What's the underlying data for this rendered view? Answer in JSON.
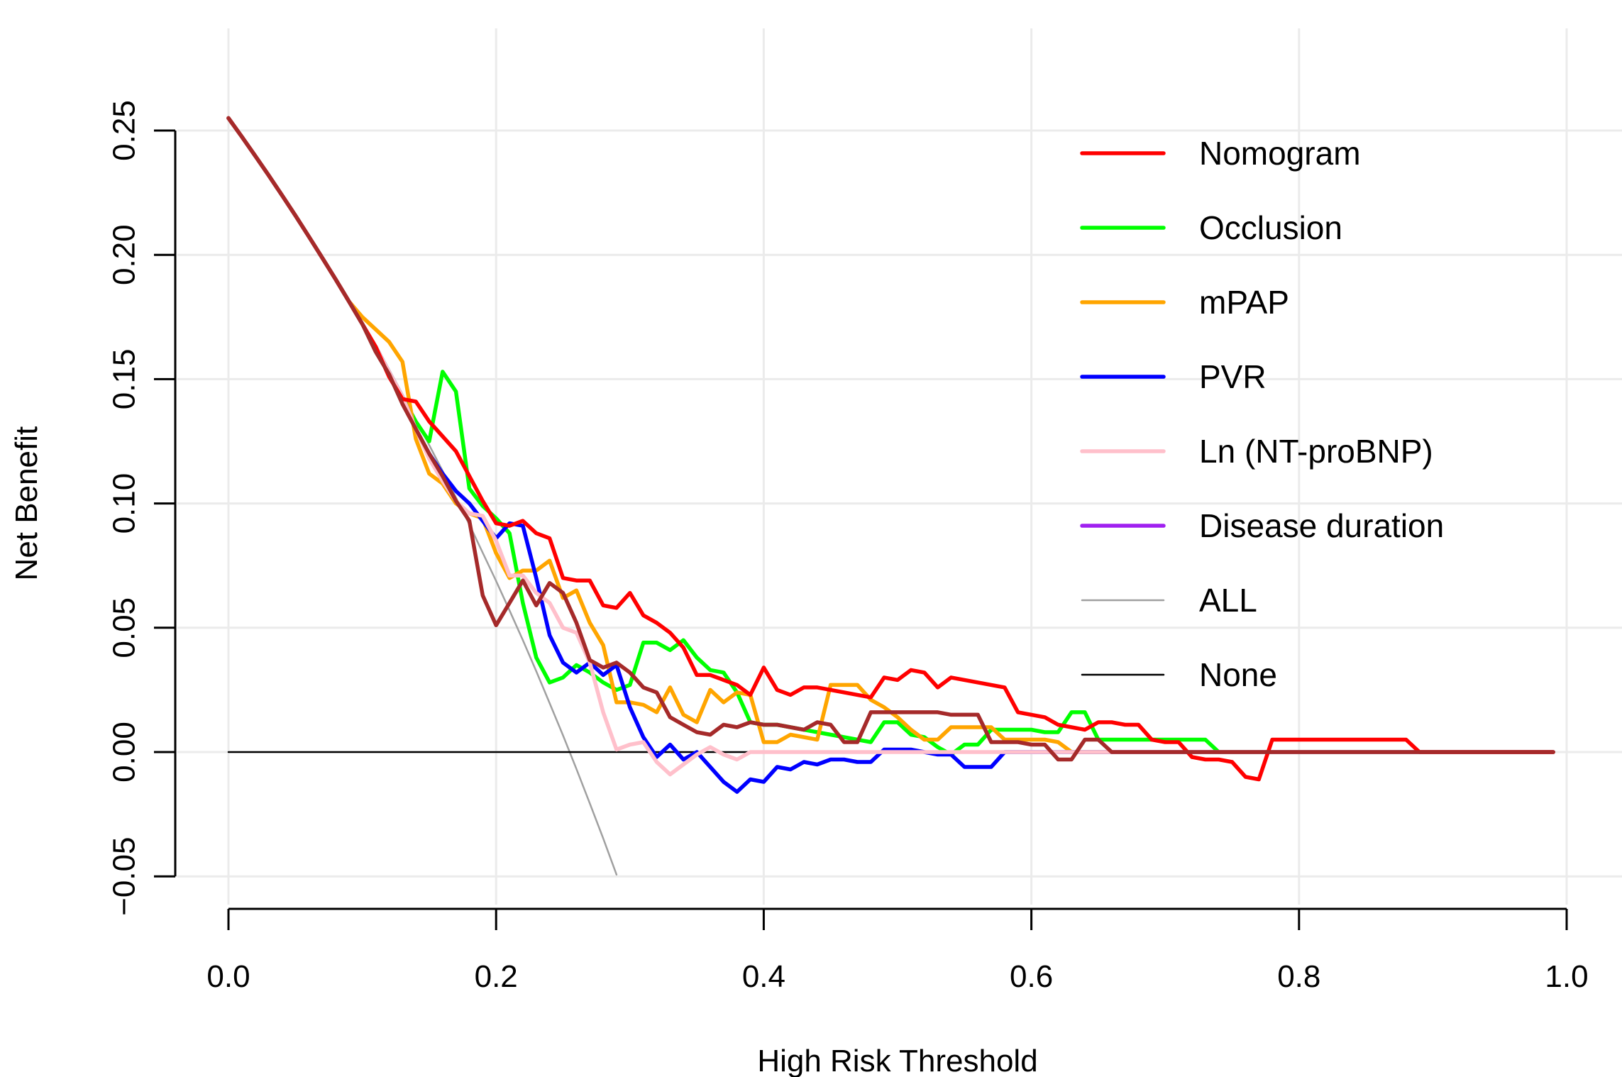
{
  "chart_data": {
    "type": "line",
    "title": "",
    "xlabel": "High Risk Threshold",
    "ylabel": "Net Benefit",
    "xlim": [
      0,
      1.0
    ],
    "ylim": [
      -0.05,
      0.25
    ],
    "xticks": [
      "0.0",
      "0.2",
      "0.4",
      "0.6",
      "0.8",
      "1.0"
    ],
    "xtick_values": [
      0,
      0.2,
      0.4,
      0.6,
      0.8,
      1.0
    ],
    "yticks": [
      "-0.05",
      "0.00",
      "0.05",
      "0.10",
      "0.15",
      "0.20",
      "0.25"
    ],
    "ytick_values": [
      -0.05,
      0,
      0.05,
      0.1,
      0.15,
      0.2,
      0.25
    ],
    "grid": true,
    "legend_position": "top-right",
    "x_step": 0.01,
    "x_start": 0,
    "series": [
      {
        "name": "Nomogram",
        "color": "#FF0000",
        "values": [
          0.255,
          0.2475,
          0.2398,
          0.232,
          0.224,
          0.2158,
          0.2074,
          0.1989,
          0.1902,
          0.1813,
          0.1722,
          0.163,
          0.151,
          0.142,
          0.141,
          0.133,
          0.127,
          0.121,
          0.111,
          0.101,
          0.092,
          0.091,
          0.093,
          0.088,
          0.086,
          0.07,
          0.069,
          0.069,
          0.059,
          0.058,
          0.064,
          0.055,
          0.052,
          0.048,
          0.042,
          0.031,
          0.031,
          0.029,
          0.027,
          0.023,
          0.034,
          0.025,
          0.023,
          0.026,
          0.026,
          0.025,
          0.024,
          0.023,
          0.022,
          0.03,
          0.029,
          0.033,
          0.032,
          0.026,
          0.03,
          0.029,
          0.028,
          0.027,
          0.026,
          0.016,
          0.015,
          0.014,
          0.011,
          0.01,
          0.009,
          0.012,
          0.012,
          0.011,
          0.011,
          0.005,
          0.004,
          0.004,
          -0.002,
          -0.003,
          -0.003,
          -0.004,
          -0.01,
          -0.011,
          0.005,
          0.005,
          0.005,
          0.005,
          0.005,
          0.005,
          0.005,
          0.005,
          0.005,
          0.005,
          0.005,
          0.0,
          0.0,
          0.0,
          0.0,
          0.0,
          0.0,
          0.0,
          0.0,
          0.0,
          0.0,
          0.0
        ]
      },
      {
        "name": "Occlusion",
        "color": "#00FF00",
        "values": [
          0.255,
          0.2475,
          0.2398,
          0.232,
          0.224,
          0.2158,
          0.2074,
          0.1989,
          0.1902,
          0.1813,
          0.1722,
          0.163,
          0.153,
          0.143,
          0.133,
          0.125,
          0.153,
          0.145,
          0.106,
          0.099,
          0.094,
          0.088,
          0.06,
          0.038,
          0.028,
          0.03,
          0.035,
          0.032,
          0.028,
          0.025,
          0.027,
          0.044,
          0.044,
          0.041,
          0.045,
          0.038,
          0.033,
          0.032,
          0.024,
          0.012,
          0.011,
          0.011,
          0.01,
          0.009,
          0.008,
          0.007,
          0.006,
          0.005,
          0.004,
          0.012,
          0.012,
          0.007,
          0.006,
          0.002,
          -0.001,
          0.003,
          0.003,
          0.009,
          0.009,
          0.009,
          0.009,
          0.008,
          0.008,
          0.016,
          0.016,
          0.005,
          0.005,
          0.005,
          0.005,
          0.005,
          0.005,
          0.005,
          0.005,
          0.005,
          0.0,
          0.0,
          0.0,
          0.0,
          0.0,
          0.0,
          0.0,
          0.0,
          0.0,
          0.0,
          0.0,
          0.0,
          0.0,
          0.0,
          0.0,
          0.0,
          0.0,
          0.0,
          0.0,
          0.0,
          0.0,
          0.0,
          0.0,
          0.0,
          0.0,
          0.0
        ]
      },
      {
        "name": "mPAP",
        "color": "#FFA500",
        "values": [
          0.255,
          0.2475,
          0.2398,
          0.232,
          0.224,
          0.2158,
          0.2074,
          0.1989,
          0.1902,
          0.1813,
          0.175,
          0.17,
          0.165,
          0.157,
          0.126,
          0.112,
          0.108,
          0.1,
          0.096,
          0.094,
          0.08,
          0.07,
          0.073,
          0.073,
          0.077,
          0.062,
          0.065,
          0.052,
          0.043,
          0.02,
          0.02,
          0.019,
          0.016,
          0.026,
          0.015,
          0.012,
          0.025,
          0.02,
          0.024,
          0.023,
          0.004,
          0.004,
          0.007,
          0.006,
          0.005,
          0.027,
          0.027,
          0.027,
          0.021,
          0.018,
          0.014,
          0.009,
          0.005,
          0.005,
          0.01,
          0.01,
          0.01,
          0.01,
          0.005,
          0.005,
          0.005,
          0.005,
          0.004,
          0.0,
          0.0,
          0.0,
          0.0,
          0.0,
          0.0,
          0.0,
          0.0,
          0.0,
          0.0,
          0.0,
          0.0,
          0.0,
          0.0,
          0.0,
          0.0,
          0.0,
          0.0,
          0.0,
          0.0,
          0.0,
          0.0,
          0.0,
          0.0,
          0.0,
          0.0,
          0.0,
          0.0,
          0.0,
          0.0,
          0.0,
          0.0,
          0.0,
          0.0,
          0.0,
          0.0,
          0.0
        ]
      },
      {
        "name": "PVR",
        "color": "#0000FF",
        "values": [
          0.255,
          0.2475,
          0.2398,
          0.232,
          0.224,
          0.2158,
          0.2074,
          0.1989,
          0.1902,
          0.1813,
          0.1722,
          0.163,
          0.153,
          0.143,
          0.13,
          0.12,
          0.112,
          0.105,
          0.1,
          0.093,
          0.086,
          0.092,
          0.091,
          0.07,
          0.047,
          0.036,
          0.032,
          0.036,
          0.031,
          0.035,
          0.018,
          0.006,
          -0.002,
          0.003,
          -0.003,
          0.0,
          -0.006,
          -0.012,
          -0.016,
          -0.011,
          -0.012,
          -0.006,
          -0.007,
          -0.004,
          -0.005,
          -0.003,
          -0.003,
          -0.004,
          -0.004,
          0.001,
          0.001,
          0.001,
          0.0,
          -0.001,
          -0.001,
          -0.006,
          -0.006,
          -0.006,
          0.0,
          0.0,
          0.0,
          0.0,
          0.0,
          0.0,
          0.0,
          0.0,
          0.0,
          0.0,
          0.0,
          0.0,
          0.0,
          0.0,
          0.0,
          0.0,
          0.0,
          0.0,
          0.0,
          0.0,
          0.0,
          0.0,
          0.0,
          0.0,
          0.0,
          0.0,
          0.0,
          0.0,
          0.0,
          0.0,
          0.0,
          0.0,
          0.0,
          0.0,
          0.0,
          0.0,
          0.0,
          0.0,
          0.0,
          0.0,
          0.0,
          0.0
        ]
      },
      {
        "name": "Ln (NT-proBNP)",
        "color": "#FFC0CB",
        "values": [
          0.255,
          0.2475,
          0.2398,
          0.232,
          0.224,
          0.2158,
          0.2074,
          0.1989,
          0.1902,
          0.1813,
          0.1722,
          0.163,
          0.153,
          0.143,
          0.13,
          0.118,
          0.109,
          0.101,
          0.096,
          0.095,
          0.085,
          0.071,
          0.071,
          0.064,
          0.06,
          0.05,
          0.048,
          0.036,
          0.016,
          0.001,
          0.003,
          0.004,
          -0.004,
          -0.009,
          -0.005,
          -0.001,
          0.002,
          -0.001,
          -0.003,
          0.0,
          0.0,
          0.0,
          0.0,
          0.0,
          0.0,
          0.0,
          0.0,
          0.0,
          0.0,
          0.0,
          0.0,
          0.0,
          0.0,
          0.0,
          0.0,
          0.0,
          0.0,
          0.0,
          0.0,
          0.0,
          0.0,
          0.0,
          0.0,
          0.0,
          0.0,
          0.0,
          0.0,
          0.0,
          0.0,
          0.0,
          0.0,
          0.0,
          0.0,
          0.0,
          0.0,
          0.0,
          0.0,
          0.0,
          0.0,
          0.0,
          0.0,
          0.0,
          0.0,
          0.0,
          0.0,
          0.0,
          0.0,
          0.0,
          0.0,
          0.0,
          0.0,
          0.0,
          0.0,
          0.0,
          0.0,
          0.0,
          0.0,
          0.0,
          0.0,
          0.0
        ]
      },
      {
        "name": "Disease duration",
        "color": "#A52A2A",
        "legend_color": "#A020F0",
        "values": [
          0.255,
          0.2475,
          0.2398,
          0.232,
          0.224,
          0.2158,
          0.2074,
          0.1989,
          0.1902,
          0.1813,
          0.1722,
          0.161,
          0.152,
          0.14,
          0.13,
          0.12,
          0.111,
          0.101,
          0.093,
          0.063,
          0.051,
          0.06,
          0.069,
          0.059,
          0.068,
          0.064,
          0.052,
          0.037,
          0.034,
          0.036,
          0.032,
          0.026,
          0.024,
          0.014,
          0.011,
          0.008,
          0.007,
          0.011,
          0.01,
          0.012,
          0.011,
          0.011,
          0.01,
          0.009,
          0.012,
          0.011,
          0.004,
          0.004,
          0.016,
          0.016,
          0.016,
          0.016,
          0.016,
          0.016,
          0.015,
          0.015,
          0.015,
          0.004,
          0.004,
          0.004,
          0.003,
          0.003,
          -0.003,
          -0.003,
          0.005,
          0.005,
          0.0,
          0.0,
          0.0,
          0.0,
          0.0,
          0.0,
          0.0,
          0.0,
          0.0,
          0.0,
          0.0,
          0.0,
          0.0,
          0.0,
          0.0,
          0.0,
          0.0,
          0.0,
          0.0,
          0.0,
          0.0,
          0.0,
          0.0,
          0.0,
          0.0,
          0.0,
          0.0,
          0.0,
          0.0,
          0.0,
          0.0,
          0.0,
          0.0,
          0.0
        ]
      },
      {
        "name": "ALL",
        "color": "#A0A0A0",
        "prevalence": 0.255,
        "values": [
          0.255,
          0.2475,
          0.2398,
          0.232,
          0.224,
          0.2158,
          0.2074,
          0.1989,
          0.1902,
          0.1813,
          0.1722,
          0.1629,
          0.1534,
          0.1437,
          0.1337,
          0.1235,
          0.1131,
          0.1024,
          0.0915,
          0.0802,
          0.0688,
          0.057,
          0.045,
          0.0325,
          0.0197,
          0.0067,
          -0.0068,
          -0.0206,
          -0.0347,
          -0.0493,
          -0.064
        ]
      },
      {
        "name": "None",
        "color": "#000000",
        "values": [
          0,
          0
        ]
      }
    ]
  }
}
